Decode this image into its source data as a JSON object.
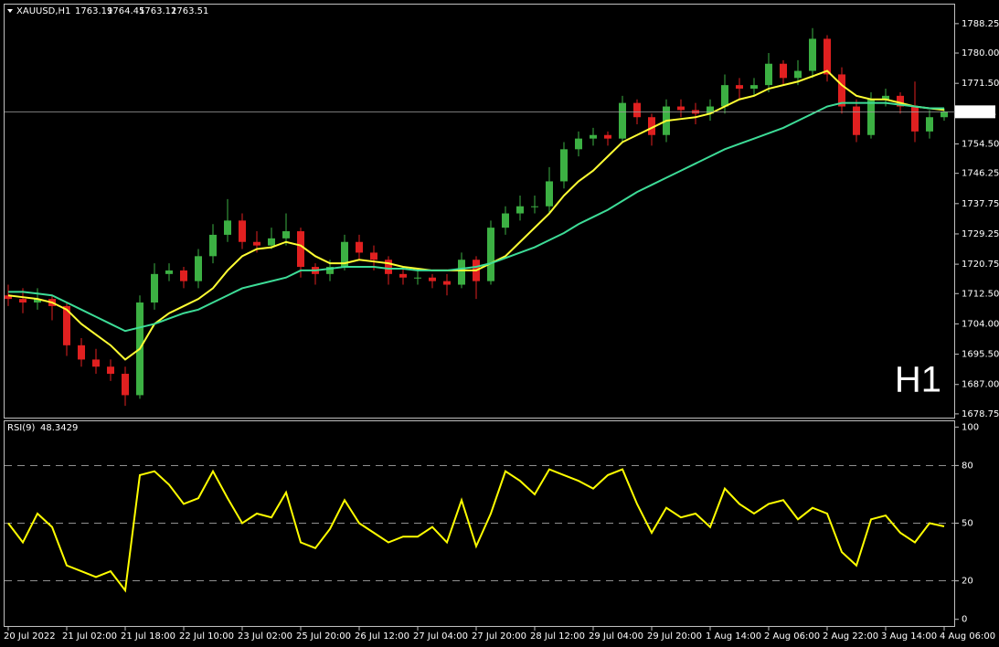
{
  "header": {
    "symbol": "XAUUSD,H1",
    "open": 1763.19,
    "high": 1764.45,
    "low": 1763.12,
    "close": 1763.51
  },
  "watermark": "H1",
  "watermark_color": "#e00000",
  "chart_data": [
    {
      "type": "candlestick",
      "categories": [
        "20 Jul 2022",
        null,
        null,
        null,
        "21 Jul 02:00",
        null,
        null,
        null,
        "21 Jul 18:00",
        null,
        null,
        null,
        "22 Jul 10:00",
        null,
        null,
        null,
        "23 Jul 02:00",
        null,
        null,
        null,
        "25 Jul 20:00",
        null,
        null,
        null,
        "26 Jul 12:00",
        null,
        null,
        null,
        "27 Jul 04:00",
        null,
        null,
        null,
        "27 Jul 20:00",
        null,
        null,
        null,
        "28 Jul 12:00",
        null,
        null,
        null,
        "29 Jul 04:00",
        null,
        null,
        null,
        "29 Jul 20:00",
        null,
        null,
        null,
        "1 Aug 14:00",
        null,
        null,
        null,
        "2 Aug 06:00",
        null,
        null,
        null,
        "2 Aug 22:00",
        null,
        null,
        null,
        "3 Aug 14:00",
        null,
        null,
        null,
        "4 Aug 06:00"
      ],
      "open": [
        1712,
        1711,
        1710,
        1711,
        1709,
        1698,
        1694,
        1692,
        1690,
        1684,
        1710,
        1718,
        1719,
        1716,
        1723,
        1729,
        1733,
        1727,
        1726,
        1728,
        1730,
        1720,
        1718,
        1720,
        1727,
        1724,
        1722,
        1718,
        1717,
        1717,
        1716,
        1715,
        1722,
        1716,
        1731,
        1735,
        1737,
        1737,
        1744,
        1753,
        1756,
        1757,
        1756,
        1766,
        1762,
        1757,
        1765,
        1764,
        1763,
        1765,
        1771,
        1770,
        1771,
        1777,
        1773,
        1775,
        1784,
        1774,
        1765,
        1757,
        1767,
        1768,
        1765,
        1758,
        1762
      ],
      "high": [
        1715,
        1714,
        1714,
        1712,
        1710,
        1700,
        1697,
        1694,
        1692,
        1712,
        1721,
        1721,
        1720,
        1725,
        1732,
        1739,
        1735,
        1730,
        1731,
        1735,
        1731,
        1721,
        1722,
        1729,
        1729,
        1726,
        1723,
        1720,
        1719,
        1718,
        1718,
        1724,
        1723,
        1733,
        1737,
        1740,
        1740,
        1748,
        1755,
        1758,
        1759,
        1758,
        1768,
        1767,
        1763,
        1767,
        1767,
        1766,
        1767,
        1774,
        1773,
        1773,
        1780,
        1778,
        1778,
        1787,
        1785,
        1776,
        1767,
        1769,
        1770,
        1769,
        1772,
        1764,
        1764.45
      ],
      "low": [
        1709,
        1707,
        1708,
        1705,
        1695,
        1692,
        1690,
        1688,
        1681,
        1683,
        1708,
        1716,
        1714,
        1714,
        1721,
        1727,
        1725,
        1724,
        1725,
        1726,
        1717,
        1715,
        1716,
        1719,
        1722,
        1719,
        1715,
        1715,
        1715,
        1714,
        1712,
        1714,
        1711,
        1715,
        1729,
        1733,
        1735,
        1735,
        1742,
        1751,
        1754,
        1754,
        1755,
        1760,
        1754,
        1755,
        1762,
        1760,
        1761,
        1763,
        1767,
        1768,
        1769,
        1771,
        1771,
        1773,
        1772,
        1763,
        1755,
        1756,
        1765,
        1763,
        1755,
        1756,
        1761
      ],
      "close": [
        1711,
        1710,
        1711,
        1709,
        1698,
        1694,
        1692,
        1690,
        1684,
        1710,
        1718,
        1719,
        1716,
        1723,
        1729,
        1733,
        1727,
        1726,
        1728,
        1730,
        1720,
        1718,
        1720,
        1727,
        1724,
        1722,
        1718,
        1717,
        1717,
        1716,
        1715,
        1722,
        1716,
        1731,
        1735,
        1737,
        1737,
        1744,
        1753,
        1756,
        1757,
        1756,
        1766,
        1762,
        1757,
        1765,
        1764,
        1763,
        1765,
        1771,
        1770,
        1771,
        1777,
        1773,
        1775,
        1784,
        1774,
        1765,
        1757,
        1767,
        1768,
        1765,
        1758,
        1762,
        1763.51
      ],
      "up_color": "#3cb043",
      "down_color": "#e02020",
      "series": [
        {
          "color": "#ffff33",
          "values": [
            1712,
            1711.5,
            1711,
            1710,
            1708,
            1704,
            1701,
            1698,
            1694,
            1697,
            1704,
            1707,
            1709,
            1711,
            1714,
            1719,
            1723,
            1725,
            1725.5,
            1727,
            1726,
            1723,
            1721,
            1721,
            1722,
            1721.5,
            1721,
            1720,
            1719.5,
            1719,
            1719,
            1719,
            1719,
            1721,
            1723,
            1727,
            1731,
            1735,
            1740,
            1744,
            1747,
            1751,
            1755,
            1757,
            1759,
            1761,
            1761.5,
            1762,
            1763,
            1765,
            1767,
            1768,
            1770,
            1771,
            1772,
            1773.5,
            1775,
            1771,
            1768,
            1767,
            1767,
            1766,
            1765,
            1764.5,
            1764
          ]
        },
        {
          "color": "#3ddc97",
          "values": [
            1713,
            1713,
            1712.5,
            1712,
            1710,
            1708,
            1706,
            1704,
            1702,
            1703,
            1704,
            1705.5,
            1707,
            1708,
            1710,
            1712,
            1714,
            1715,
            1716,
            1717,
            1719,
            1719,
            1719.5,
            1720,
            1720,
            1720,
            1719.5,
            1719.5,
            1719,
            1719,
            1719,
            1719.5,
            1720,
            1721,
            1722.5,
            1724,
            1725.5,
            1727.5,
            1729.5,
            1732,
            1734,
            1736,
            1738.5,
            1741,
            1743,
            1745,
            1747,
            1749,
            1751,
            1753,
            1754.5,
            1756,
            1757.5,
            1759,
            1761,
            1763,
            1765,
            1766,
            1766,
            1766,
            1766,
            1765.5,
            1765,
            1764.5,
            1764.5
          ]
        }
      ],
      "ylim": [
        1677.7,
        1793.6
      ],
      "yticks": [
        1788.25,
        {
          "value": 1780,
          "label": "1780.00"
        },
        {
          "value": 1771.5,
          "label": "1771.50"
        },
        {
          "value": 1754.5,
          "label": "1754.50"
        },
        1746.25,
        1737.75,
        1729.25,
        1720.75,
        {
          "value": 1712.5,
          "label": "1712.50"
        },
        {
          "value": 1704,
          "label": "1704.00"
        },
        {
          "value": 1695.5,
          "label": "1695.50"
        },
        {
          "value": 1687,
          "label": "1687.00"
        },
        1678.75
      ]
    },
    {
      "type": "line",
      "name": "RSI(9)",
      "color": "#ffff00",
      "values": [
        50,
        40,
        55,
        48,
        28,
        25,
        22,
        25,
        15,
        75,
        77,
        70,
        60,
        63,
        77,
        63,
        50,
        55,
        53,
        66,
        40,
        37,
        47,
        62,
        50,
        45,
        40,
        43,
        43,
        48,
        40,
        62,
        38,
        55,
        77,
        72,
        65,
        78,
        75,
        72,
        68,
        75,
        78,
        60,
        45,
        58,
        53,
        55,
        48,
        68,
        60,
        55,
        60,
        62,
        52,
        58,
        55,
        35,
        28,
        52,
        54,
        45,
        40,
        50,
        48.3429
      ],
      "ylim": [
        -3,
        103
      ],
      "yticks": [
        100,
        80,
        50,
        20,
        0
      ],
      "levels": [
        20,
        50,
        80
      ]
    }
  ]
}
